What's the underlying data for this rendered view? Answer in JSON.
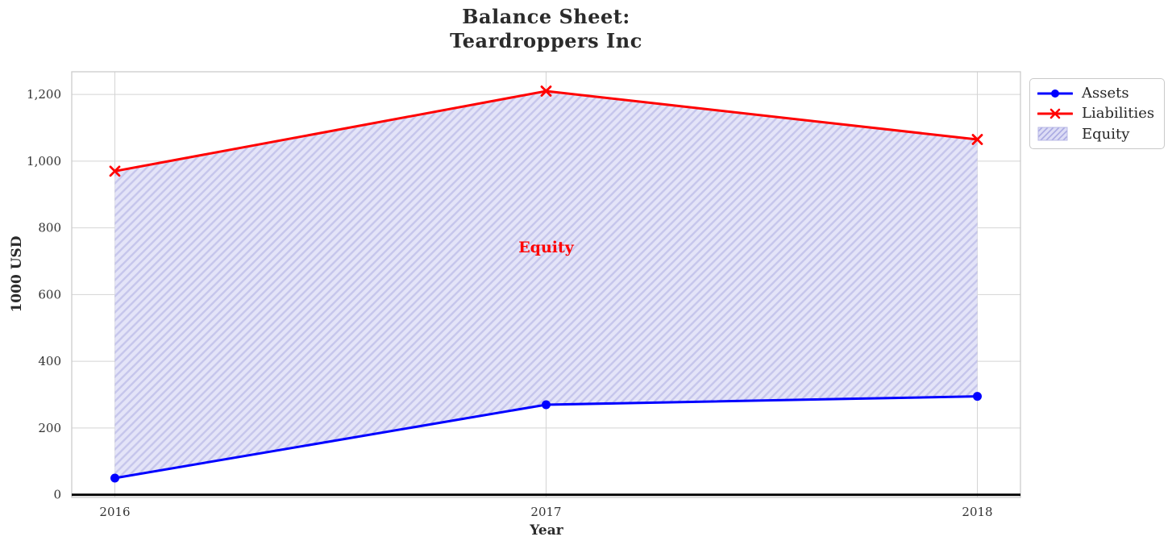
{
  "header": {
    "title": "Balance Sheet:\nTeardroppers Inc"
  },
  "chart_data": {
    "type": "line",
    "title": "Balance Sheet:\nTeardroppers Inc",
    "xlabel": "Year",
    "ylabel": "1000 USD",
    "x": [
      2016,
      2017,
      2018
    ],
    "x_labels": [
      "2016",
      "2017",
      "2018"
    ],
    "series": [
      {
        "name": "Assets",
        "values": [
          50,
          270,
          295
        ],
        "color": "#0000ff",
        "marker": "circle",
        "line_width": 3
      },
      {
        "name": "Liabilities",
        "values": [
          970,
          1210,
          1065
        ],
        "color": "#ff0000",
        "marker": "x",
        "line_width": 3
      }
    ],
    "fill_between": {
      "label": "Equity",
      "between": [
        "Assets",
        "Liabilities"
      ],
      "implied_values": [
        920,
        940,
        770
      ],
      "facecolor": "#e4e4f8",
      "hatch": "/",
      "hatch_color": "#c6c6ec"
    },
    "annotation": {
      "text": "Equity",
      "x": 2017,
      "y": 740,
      "color": "#ff0000"
    },
    "yticks": {
      "values": [
        0,
        200,
        400,
        600,
        800,
        1000,
        1200
      ],
      "labels": [
        "0",
        "200",
        "400",
        "600",
        "800",
        "1,000",
        "1,200"
      ]
    },
    "xlim": [
      2015.9,
      2018.1
    ],
    "ylim": [
      -8,
      1268
    ],
    "grid": true,
    "zero_line_color": "#000000",
    "grid_color": "#d4d4d4",
    "spine_color": "#cccccc",
    "tick_label_color": "#333333",
    "legend": {
      "position": "outside upper right",
      "entries": [
        "Assets",
        "Liabilities",
        "Equity"
      ]
    }
  }
}
